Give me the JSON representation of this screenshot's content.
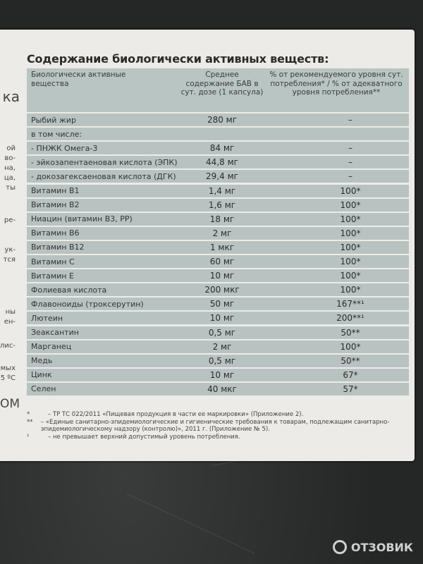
{
  "title": "Содержание биологически активных веществ:",
  "left_edge_fragments": [
    "ка",
    "ой",
    "во-",
    "на,",
    "ца,",
    "ты",
    "ре-",
    "ук-",
    "тся",
    "ны",
    "ен-",
    "лис-",
    "мых",
    "5 ºC",
    "ОМ"
  ],
  "table": {
    "headers": [
      "Биологически активные вещества",
      "Среднее содержание БАВ в сут. дозе (1 капсула)",
      "% от рекомендуемого уровня сут. потребления* / % от адекватного уровня потребления**"
    ],
    "rows": [
      [
        "Рыбий жир",
        "280 мг",
        "–"
      ],
      [
        "в том числе:",
        "",
        ""
      ],
      [
        "- ПНЖК Омега-3",
        "84 мг",
        "–"
      ],
      [
        "- эйкозапентаеновая кислота (ЭПК)",
        "44,8 мг",
        "–"
      ],
      [
        "- докозагексаеновая кислота (ДГК)",
        "29,4 мг",
        "–"
      ],
      [
        "Витамин В1",
        "1,4 мг",
        "100*"
      ],
      [
        "Витамин В2",
        "1,6 мг",
        "100*"
      ],
      [
        "Ниацин (витамин В3, РР)",
        "18 мг",
        "100*"
      ],
      [
        "Витамин В6",
        "2 мг",
        "100*"
      ],
      [
        "Витамин В12",
        "1 мкг",
        "100*"
      ],
      [
        "Витамин С",
        "60 мг",
        "100*"
      ],
      [
        "Витамин Е",
        "10 мг",
        "100*"
      ],
      [
        "Фолиевая кислота",
        "200 мкг",
        "100*"
      ],
      [
        "Флавоноиды (троксерутин)",
        "50 мг",
        "167**¹"
      ],
      [
        "Лютеин",
        "10 мг",
        "200**¹"
      ],
      [
        "Зеаксантин",
        "0,5 мг",
        "50**"
      ],
      [
        "Марганец",
        "2 мг",
        "100*"
      ],
      [
        "Медь",
        "0,5 мг",
        "50**"
      ],
      [
        "Цинк",
        "10 мг",
        "67*"
      ],
      [
        "Селен",
        "40 мкг",
        "57*"
      ]
    ]
  },
  "footnotes": [
    {
      "mark": "*",
      "text": "– ТР ТС 022/2011 «Пищевая продукция в части ее маркировки» (Приложение 2)."
    },
    {
      "mark": "**",
      "text": "– «Единые санитарно-эпидемиологические и гигиенические требования к товарам, подлежащим санитарно-эпидемиологическому надзору (контролю)», 2011 г. (Приложение № 5)."
    },
    {
      "mark": "¹",
      "text": "– не превышает верхний допустимый уровень потребления."
    }
  ],
  "watermark": "ОТЗОВИК"
}
